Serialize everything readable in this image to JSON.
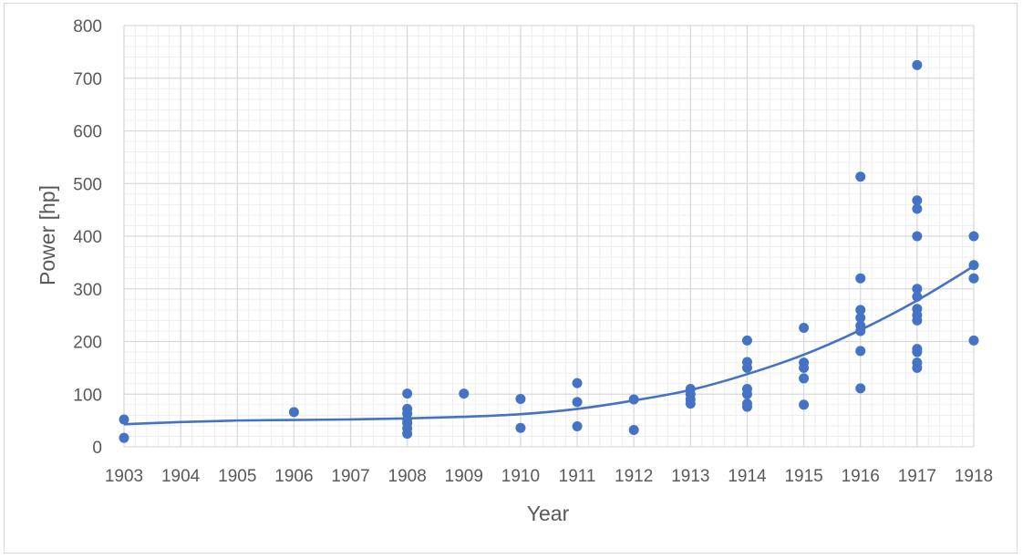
{
  "chart_data": {
    "type": "scatter",
    "title": "",
    "xlabel": "Year",
    "ylabel": "Power [hp]",
    "xlim": [
      1903,
      1918
    ],
    "ylim": [
      0,
      800
    ],
    "x_ticks": [
      "1903",
      "1904",
      "1905",
      "1906",
      "1907",
      "1908",
      "1909",
      "1910",
      "1911",
      "1912",
      "1913",
      "1914",
      "1915",
      "1916",
      "1917",
      "1918"
    ],
    "y_ticks": [
      "0",
      "100",
      "200",
      "300",
      "400",
      "500",
      "600",
      "700",
      "800"
    ],
    "grid": true,
    "legend": "none",
    "colors": {
      "series": "#4472c4",
      "grid_major": "#d9d9d9",
      "grid_minor": "#ededed",
      "text": "#595959"
    },
    "series": [
      {
        "points": [
          [
            1903,
            52
          ],
          [
            1903,
            17
          ],
          [
            1906,
            66
          ],
          [
            1908,
            101
          ],
          [
            1908,
            72
          ],
          [
            1908,
            63
          ],
          [
            1908,
            52
          ],
          [
            1908,
            45
          ],
          [
            1908,
            35
          ],
          [
            1908,
            25
          ],
          [
            1909,
            101
          ],
          [
            1910,
            91
          ],
          [
            1910,
            36
          ],
          [
            1911,
            121
          ],
          [
            1911,
            85
          ],
          [
            1911,
            39
          ],
          [
            1912,
            90
          ],
          [
            1912,
            32
          ],
          [
            1913,
            110
          ],
          [
            1913,
            100
          ],
          [
            1913,
            90
          ],
          [
            1913,
            82
          ],
          [
            1914,
            202
          ],
          [
            1914,
            161
          ],
          [
            1914,
            150
          ],
          [
            1914,
            110
          ],
          [
            1914,
            100
          ],
          [
            1914,
            82
          ],
          [
            1914,
            76
          ],
          [
            1915,
            226
          ],
          [
            1915,
            160
          ],
          [
            1915,
            150
          ],
          [
            1915,
            130
          ],
          [
            1915,
            80
          ],
          [
            1916,
            513
          ],
          [
            1916,
            320
          ],
          [
            1916,
            260
          ],
          [
            1916,
            245
          ],
          [
            1916,
            230
          ],
          [
            1916,
            220
          ],
          [
            1916,
            182
          ],
          [
            1916,
            111
          ],
          [
            1917,
            725
          ],
          [
            1917,
            468
          ],
          [
            1917,
            452
          ],
          [
            1917,
            400
          ],
          [
            1917,
            300
          ],
          [
            1917,
            285
          ],
          [
            1917,
            262
          ],
          [
            1917,
            250
          ],
          [
            1917,
            240
          ],
          [
            1917,
            186
          ],
          [
            1917,
            180
          ],
          [
            1917,
            160
          ],
          [
            1917,
            150
          ],
          [
            1918,
            400
          ],
          [
            1918,
            345
          ],
          [
            1918,
            320
          ],
          [
            1918,
            202
          ]
        ]
      }
    ],
    "trendline": {
      "type": "polynomial",
      "points": [
        [
          1903,
          43
        ],
        [
          1904,
          47
        ],
        [
          1905,
          50
        ],
        [
          1906,
          51
        ],
        [
          1907,
          52
        ],
        [
          1908,
          54
        ],
        [
          1909,
          57
        ],
        [
          1910,
          62
        ],
        [
          1911,
          72
        ],
        [
          1912,
          88
        ],
        [
          1913,
          108
        ],
        [
          1914,
          138
        ],
        [
          1915,
          175
        ],
        [
          1916,
          222
        ],
        [
          1917,
          278
        ],
        [
          1918,
          343
        ]
      ]
    }
  }
}
